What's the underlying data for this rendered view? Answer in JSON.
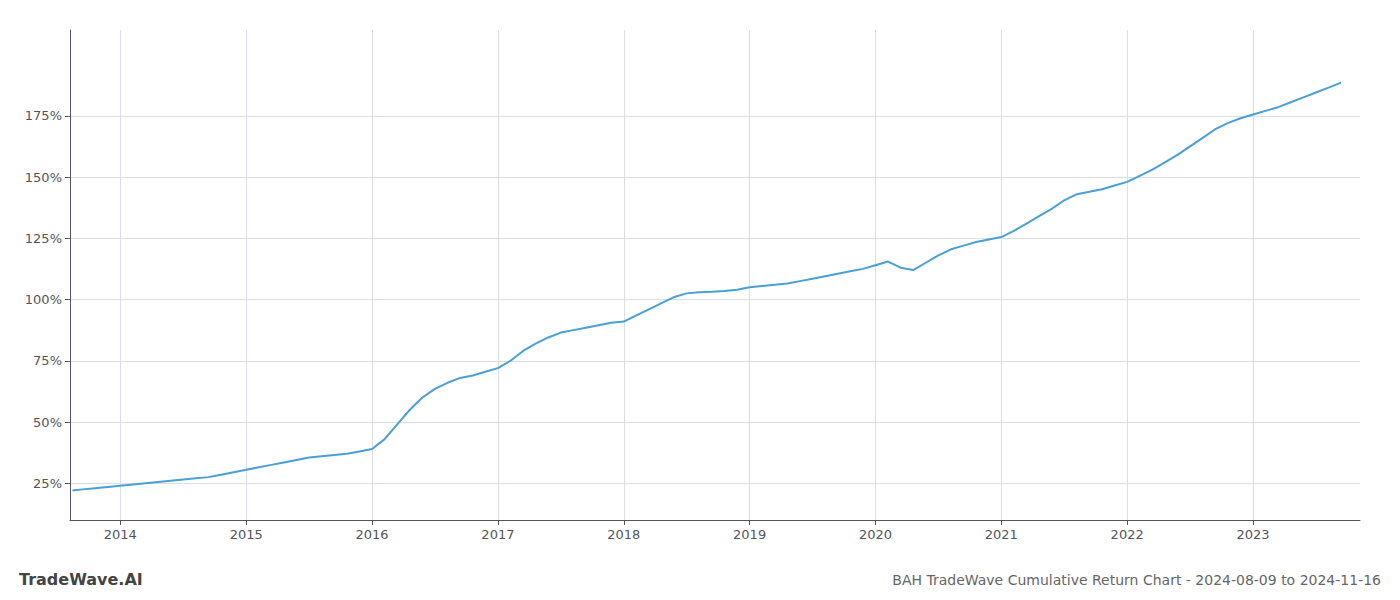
{
  "chart_data": {
    "type": "line",
    "title": "BAH TradeWave Cumulative Return Chart - 2024-08-09 to 2024-11-16",
    "annotations": [
      "TradeWave.AI"
    ],
    "color": "#4a9fd4",
    "grid": true,
    "x": [
      2013.62,
      2013.7,
      2013.8,
      2013.9,
      2014.0,
      2014.1,
      2014.2,
      2014.3,
      2014.4,
      2014.5,
      2014.6,
      2014.7,
      2014.8,
      2014.9,
      2015.0,
      2015.1,
      2015.2,
      2015.3,
      2015.4,
      2015.5,
      2015.6,
      2015.7,
      2015.8,
      2015.9,
      2016.0,
      2016.1,
      2016.2,
      2016.3,
      2016.4,
      2016.5,
      2016.6,
      2016.7,
      2016.8,
      2016.9,
      2017.0,
      2017.1,
      2017.2,
      2017.3,
      2017.4,
      2017.5,
      2017.6,
      2017.7,
      2017.8,
      2017.9,
      2018.0,
      2018.1,
      2018.2,
      2018.3,
      2018.4,
      2018.5,
      2018.6,
      2018.7,
      2018.8,
      2018.9,
      2019.0,
      2019.1,
      2019.2,
      2019.3,
      2019.4,
      2019.5,
      2019.6,
      2019.7,
      2019.8,
      2019.9,
      2020.0,
      2020.1,
      2020.2,
      2020.3,
      2020.4,
      2020.5,
      2020.6,
      2020.7,
      2020.8,
      2020.9,
      2021.0,
      2021.1,
      2021.2,
      2021.3,
      2021.4,
      2021.5,
      2021.6,
      2021.7,
      2021.8,
      2021.9,
      2022.0,
      2022.1,
      2022.2,
      2022.3,
      2022.4,
      2022.5,
      2022.6,
      2022.7,
      2022.8,
      2022.9,
      2023.0,
      2023.1,
      2023.2,
      2023.3,
      2023.4,
      2023.5,
      2023.6,
      2023.7
    ],
    "values": [
      22.0,
      22.5,
      23.0,
      23.5,
      24.0,
      24.5,
      25.0,
      25.5,
      26.0,
      26.5,
      27.0,
      27.5,
      28.5,
      29.5,
      30.5,
      31.5,
      32.5,
      33.5,
      34.5,
      35.5,
      36.0,
      36.5,
      37.0,
      38.0,
      39.0,
      43.0,
      49.0,
      55.0,
      60.0,
      63.5,
      66.0,
      68.0,
      69.0,
      70.5,
      72.0,
      75.0,
      79.0,
      82.0,
      84.5,
      86.5,
      87.5,
      88.5,
      89.5,
      90.5,
      91.0,
      93.5,
      96.0,
      98.5,
      101.0,
      102.5,
      103.0,
      103.2,
      103.5,
      104.0,
      105.0,
      105.5,
      106.0,
      106.5,
      107.5,
      108.5,
      109.5,
      110.5,
      111.5,
      112.5,
      114.0,
      115.5,
      113.0,
      112.0,
      115.0,
      118.0,
      120.5,
      122.0,
      123.5,
      124.5,
      125.5,
      128.0,
      131.0,
      134.0,
      137.0,
      140.5,
      143.0,
      144.0,
      145.0,
      146.5,
      148.0,
      150.5,
      153.0,
      156.0,
      159.0,
      162.5,
      166.0,
      169.5,
      172.0,
      174.0,
      175.5,
      177.0,
      178.5,
      180.5,
      182.5,
      184.5,
      186.5,
      188.5
    ],
    "xlim": [
      2013.6,
      2023.85
    ],
    "xticks": [
      2014,
      2015,
      2016,
      2017,
      2018,
      2019,
      2020,
      2021,
      2022,
      2023
    ],
    "ylim": [
      10,
      210
    ],
    "yticks": [
      {
        "value": 25,
        "label": "25%"
      },
      {
        "value": 50,
        "label": "50%"
      },
      {
        "value": 75,
        "label": "75%"
      },
      {
        "value": 100,
        "label": "100%"
      },
      {
        "value": 125,
        "label": "125%"
      },
      {
        "value": 150,
        "label": "150%"
      },
      {
        "value": 175,
        "label": "175%"
      }
    ]
  }
}
